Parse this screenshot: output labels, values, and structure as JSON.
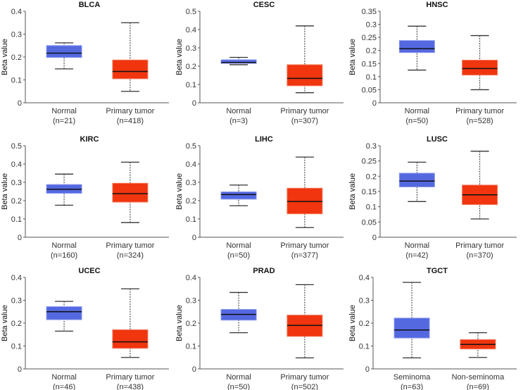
{
  "colors": {
    "normal": "#5468e0",
    "tumor": "#f0350f",
    "normal_edge": "#8c9af0",
    "tumor_edge": "#f77a5c"
  },
  "chart_data": [
    {
      "type": "box",
      "title": "BLCA",
      "ylabel": "Beta value",
      "ylim": [
        0,
        0.4
      ],
      "yticks": [
        "0",
        "0.1",
        "0.2",
        "0.3",
        "0.4"
      ],
      "groups": [
        {
          "label": "Normal",
          "n": "(n=21)",
          "stats": {
            "min": 0.148,
            "q1": 0.198,
            "median": 0.217,
            "q3": 0.25,
            "max": 0.262
          }
        },
        {
          "label": "Primary tumor",
          "n": "(n=418)",
          "stats": {
            "min": 0.05,
            "q1": 0.105,
            "median": 0.137,
            "q3": 0.187,
            "max": 0.35
          }
        }
      ]
    },
    {
      "type": "box",
      "title": "CESC",
      "ylabel": "Beta value",
      "ylim": [
        0,
        0.5
      ],
      "yticks": [
        "0",
        "0.1",
        "0.2",
        "0.3",
        "0.4",
        "0.5"
      ],
      "groups": [
        {
          "label": "Normal",
          "n": "(n=3)",
          "stats": {
            "min": 0.208,
            "q1": 0.215,
            "median": 0.22,
            "q3": 0.235,
            "max": 0.248
          }
        },
        {
          "label": "Primary tumor",
          "n": "(n=307)",
          "stats": {
            "min": 0.055,
            "q1": 0.093,
            "median": 0.133,
            "q3": 0.208,
            "max": 0.42
          }
        }
      ]
    },
    {
      "type": "box",
      "title": "HNSC",
      "ylabel": "Beta value",
      "ylim": [
        0,
        0.35
      ],
      "yticks": [
        "0",
        "0.05",
        "0.1",
        "0.15",
        "0.2",
        "0.25",
        "0.3",
        "0.35"
      ],
      "groups": [
        {
          "label": "Normal",
          "n": "(n=50)",
          "stats": {
            "min": 0.125,
            "q1": 0.192,
            "median": 0.207,
            "q3": 0.238,
            "max": 0.293
          }
        },
        {
          "label": "Primary tumor",
          "n": "(n=528)",
          "stats": {
            "min": 0.05,
            "q1": 0.106,
            "median": 0.131,
            "q3": 0.163,
            "max": 0.257
          }
        }
      ]
    },
    {
      "type": "box",
      "title": "KIRC",
      "ylabel": "Beta value",
      "ylim": [
        0,
        0.5
      ],
      "yticks": [
        "0",
        "0.1",
        "0.2",
        "0.3",
        "0.4",
        "0.5"
      ],
      "groups": [
        {
          "label": "Normal",
          "n": "(n=160)",
          "stats": {
            "min": 0.175,
            "q1": 0.24,
            "median": 0.262,
            "q3": 0.288,
            "max": 0.345
          }
        },
        {
          "label": "Primary tumor",
          "n": "(n=324)",
          "stats": {
            "min": 0.08,
            "q1": 0.192,
            "median": 0.238,
            "q3": 0.295,
            "max": 0.41
          }
        }
      ]
    },
    {
      "type": "box",
      "title": "LIHC",
      "ylabel": "Beta value",
      "ylim": [
        0,
        0.5
      ],
      "yticks": [
        "0",
        "0.1",
        "0.2",
        "0.3",
        "0.4",
        "0.5"
      ],
      "groups": [
        {
          "label": "Normal",
          "n": "(n=50)",
          "stats": {
            "min": 0.172,
            "q1": 0.208,
            "median": 0.233,
            "q3": 0.248,
            "max": 0.285
          }
        },
        {
          "label": "Primary tumor",
          "n": "(n=377)",
          "stats": {
            "min": 0.053,
            "q1": 0.128,
            "median": 0.195,
            "q3": 0.268,
            "max": 0.438
          }
        }
      ]
    },
    {
      "type": "box",
      "title": "LUSC",
      "ylabel": "Beta value",
      "ylim": [
        0,
        0.3
      ],
      "yticks": [
        "0",
        "0.05",
        "0.1",
        "0.15",
        "0.2",
        "0.25",
        "0.3"
      ],
      "groups": [
        {
          "label": "Normal",
          "n": "(n=42)",
          "stats": {
            "min": 0.117,
            "q1": 0.165,
            "median": 0.184,
            "q3": 0.21,
            "max": 0.246
          }
        },
        {
          "label": "Primary tumor",
          "n": "(n=370)",
          "stats": {
            "min": 0.06,
            "q1": 0.107,
            "median": 0.139,
            "q3": 0.171,
            "max": 0.282
          }
        }
      ]
    },
    {
      "type": "box",
      "title": "UCEC",
      "ylabel": "Beta value",
      "ylim": [
        0,
        0.4
      ],
      "yticks": [
        "0",
        "0.1",
        "0.2",
        "0.3",
        "0.4"
      ],
      "groups": [
        {
          "label": "Normal",
          "n": "(n=46)",
          "stats": {
            "min": 0.165,
            "q1": 0.215,
            "median": 0.25,
            "q3": 0.272,
            "max": 0.295
          }
        },
        {
          "label": "Primary tumor",
          "n": "(n=438)",
          "stats": {
            "min": 0.05,
            "q1": 0.09,
            "median": 0.118,
            "q3": 0.171,
            "max": 0.35
          }
        }
      ]
    },
    {
      "type": "box",
      "title": "PRAD",
      "ylabel": "Beta value",
      "ylim": [
        0,
        0.4
      ],
      "yticks": [
        "0",
        "0.1",
        "0.2",
        "0.3",
        "0.4"
      ],
      "groups": [
        {
          "label": "Normal",
          "n": "(n=50)",
          "stats": {
            "min": 0.158,
            "q1": 0.213,
            "median": 0.238,
            "q3": 0.26,
            "max": 0.334
          }
        },
        {
          "label": "Primary tumor",
          "n": "(n=502)",
          "stats": {
            "min": 0.048,
            "q1": 0.142,
            "median": 0.19,
            "q3": 0.235,
            "max": 0.368
          }
        }
      ]
    },
    {
      "type": "box",
      "title": "TGCT",
      "ylabel": "Beta value",
      "ylim": [
        0,
        0.4
      ],
      "yticks": [
        "0",
        "0.1",
        "0.2",
        "0.3",
        "0.4"
      ],
      "groups": [
        {
          "label": "Seminoma",
          "n": "(n=63)",
          "stats": {
            "min": 0.048,
            "q1": 0.135,
            "median": 0.17,
            "q3": 0.222,
            "max": 0.378
          }
        },
        {
          "label": "Non-seminoma",
          "n": "(n=69)",
          "stats": {
            "min": 0.05,
            "q1": 0.087,
            "median": 0.107,
            "q3": 0.128,
            "max": 0.158
          }
        }
      ]
    }
  ]
}
